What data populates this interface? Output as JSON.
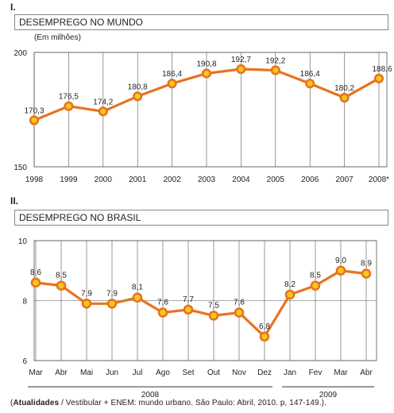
{
  "panel1": {
    "number": "I.",
    "title": "DESEMPREGO NO MUNDO",
    "unit": "(Em milhões)"
  },
  "panel2": {
    "number": "II.",
    "title": "DESEMPREGO NO BRASIL"
  },
  "source": {
    "open_paren": "(",
    "bold": "Atualidades",
    "rest": " / Vestibular + ENEM: mundo urbano. São Paulo: Abril, 2010. p, 147-149.)."
  },
  "colors": {
    "line": "#e8731f",
    "point_fill": "#f7c81e",
    "grid": "#555555"
  },
  "chart_data": [
    {
      "type": "line",
      "title": "DESEMPREGO NO MUNDO",
      "ylabel": "(Em milhões)",
      "categories": [
        "1998",
        "1999",
        "2000",
        "2001",
        "2002",
        "2003",
        "2004",
        "2005",
        "2006",
        "2007",
        "2008*"
      ],
      "values": [
        170.3,
        176.5,
        174.2,
        180.8,
        186.4,
        190.8,
        192.7,
        192.2,
        186.4,
        180.2,
        188.6
      ],
      "value_labels": [
        "170,3",
        "176,5",
        "174,2",
        "180,8",
        "186,4",
        "190,8",
        "192,7",
        "192,2",
        "186,4",
        "180,2",
        "188,6"
      ],
      "yticks": [
        "150",
        "200"
      ],
      "ylim": [
        150,
        200
      ],
      "grid": true
    },
    {
      "type": "line",
      "title": "DESEMPREGO NO BRASIL",
      "categories": [
        "Mar",
        "Abr",
        "Mai",
        "Jun",
        "Jul",
        "Ago",
        "Set",
        "Out",
        "Nov",
        "Dez",
        "Jan",
        "Fev",
        "Mar",
        "Abr"
      ],
      "values": [
        8.6,
        8.5,
        7.9,
        7.9,
        8.1,
        7.6,
        7.7,
        7.5,
        7.6,
        6.8,
        8.2,
        8.5,
        9.0,
        8.9
      ],
      "value_labels": [
        "8,6",
        "8,5",
        "7,9",
        "7,9",
        "8,1",
        "7,6",
        "7,7",
        "7,5",
        "7,6",
        "6,8",
        "8,2",
        "8,5",
        "9,0",
        "8,9"
      ],
      "yticks": [
        "6",
        "8",
        "10"
      ],
      "ylim": [
        6,
        10
      ],
      "grid": true,
      "year_groups": [
        {
          "label": "2008",
          "from": 0,
          "to": 9
        },
        {
          "label": "2009",
          "from": 10,
          "to": 13
        }
      ]
    }
  ]
}
